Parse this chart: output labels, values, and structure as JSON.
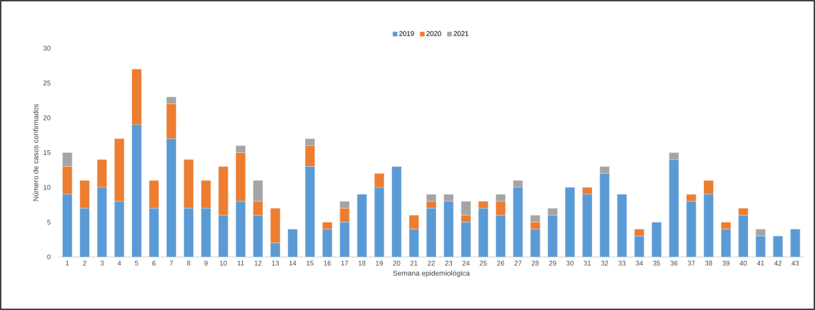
{
  "chart_data": {
    "type": "bar",
    "stacked": true,
    "xlabel": "Semana epidemiológica",
    "ylabel": "Número de casos confirmados",
    "categories": [
      "1",
      "2",
      "3",
      "4",
      "5",
      "6",
      "7",
      "8",
      "9",
      "10",
      "11",
      "12",
      "13",
      "14",
      "15",
      "16",
      "17",
      "18",
      "19",
      "20",
      "21",
      "22",
      "23",
      "24",
      "25",
      "26",
      "27",
      "28",
      "29",
      "30",
      "31",
      "32",
      "33",
      "34",
      "35",
      "36",
      "37",
      "38",
      "39",
      "40",
      "41",
      "42",
      "43"
    ],
    "series": [
      {
        "name": "2019",
        "color": "#5b9bd5",
        "values": [
          9,
          7,
          10,
          8,
          19,
          7,
          17,
          7,
          7,
          6,
          8,
          6,
          2,
          4,
          13,
          4,
          5,
          9,
          10,
          13,
          4,
          7,
          8,
          5,
          7,
          6,
          10,
          4,
          6,
          10,
          9,
          12,
          9,
          3,
          5,
          14,
          8,
          9,
          4,
          6,
          3,
          3,
          4
        ]
      },
      {
        "name": "2020",
        "color": "#ed7d31",
        "values": [
          4,
          4,
          4,
          9,
          8,
          4,
          5,
          7,
          4,
          7,
          7,
          2,
          5,
          0,
          3,
          1,
          2,
          0,
          2,
          0,
          2,
          1,
          0,
          1,
          1,
          2,
          0,
          1,
          0,
          0,
          1,
          0,
          0,
          1,
          0,
          0,
          1,
          2,
          1,
          1,
          0,
          0,
          0
        ]
      },
      {
        "name": "2021",
        "color": "#a5a5a5",
        "values": [
          2,
          0,
          0,
          0,
          0,
          0,
          1,
          0,
          0,
          0,
          1,
          3,
          0,
          0,
          1,
          0,
          1,
          0,
          0,
          0,
          0,
          1,
          1,
          2,
          0,
          1,
          1,
          1,
          1,
          0,
          0,
          1,
          0,
          0,
          0,
          1,
          0,
          0,
          0,
          0,
          1,
          0,
          0
        ]
      }
    ],
    "ylim": [
      0,
      30
    ],
    "yticks": [
      0,
      5,
      10,
      15,
      20,
      25,
      30
    ],
    "legend": "top"
  }
}
